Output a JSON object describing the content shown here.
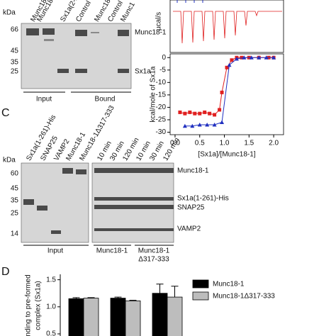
{
  "panel_a": {
    "kda": "kDa",
    "markers": [
      "66",
      "45",
      "35",
      "25"
    ],
    "lanes": [
      "Munc18",
      "Munc18",
      "Sx1a(2-2",
      "Control",
      "Munc18",
      "Control",
      "Munc1"
    ],
    "bands": [
      "Munc18-1",
      "Sx1a"
    ],
    "groups": [
      "Input",
      "Bound"
    ]
  },
  "panel_c": {
    "letter": "C",
    "kda": "kDa",
    "markers": [
      "60",
      "45",
      "35",
      "25",
      "14"
    ],
    "lanes": [
      "Sx1a(1-261)-His",
      "SNAP25",
      "VAMP2",
      "Munc18-1",
      "Munc18-1Δ317-333",
      "10 min",
      "30 min",
      "120 min",
      "10 min",
      "30 min",
      "120 min"
    ],
    "bands": [
      "Munc18-1",
      "Sx1a(1-261)-His",
      "SNAP25",
      "VAMP2"
    ],
    "groups": [
      "Input",
      "Munc18-1",
      "Munc18-1",
      "Δ317-333"
    ]
  },
  "itc_raw_label": "µcal/s",
  "panel_d": {
    "letter": "D"
  },
  "chart_data": [
    {
      "type": "scatter",
      "y_label": "kcal/mole of Sx1a",
      "x_label": "[Sx1a]/[Munc18-1]",
      "xlim": [
        -0.1,
        2.2
      ],
      "xticks": [
        {
          "value": 0,
          "label": "0.0"
        },
        0.5,
        {
          "value": 1,
          "label": "1.0"
        },
        1.5,
        {
          "value": 2,
          "label": "2.0"
        }
      ],
      "ylim": [
        -31,
        1.5
      ],
      "yticks": [
        0,
        -5,
        -10,
        -15,
        -20,
        -25,
        -30
      ],
      "series": [
        {
          "color": "#e02020",
          "marker": "square",
          "x": [
            0.1,
            0.2,
            0.3,
            0.4,
            0.5,
            0.6,
            0.7,
            0.8,
            0.9,
            0.95,
            1.05,
            1.15,
            1.25,
            1.35,
            1.5,
            1.7,
            1.9,
            2.0
          ],
          "values": [
            -22,
            -22.5,
            -22,
            -22.5,
            -22.5,
            -22,
            -22.5,
            -23,
            -21,
            -14,
            -4,
            -1,
            0,
            0,
            0,
            0,
            0,
            0
          ]
        },
        {
          "color": "#2030c0",
          "marker": "triangle",
          "x": [
            0.2,
            0.35,
            0.5,
            0.65,
            0.8,
            0.95,
            1.1,
            1.25,
            1.4,
            1.55,
            1.7,
            1.85,
            2.0
          ],
          "values": [
            -27.5,
            -27.5,
            -27,
            -27,
            -27,
            -26,
            -3,
            -0.5,
            0,
            0,
            0,
            0,
            0
          ]
        }
      ]
    },
    {
      "type": "bar",
      "y_label": [
        "nding to pre-formed",
        "complex (Sx1a)"
      ],
      "ylim": [
        0.5,
        1.6
      ],
      "yticks": [
        0.5,
        {
          "value": 1,
          "label": "1.0"
        },
        1.5
      ],
      "categories": [
        null,
        null,
        null
      ],
      "series": [
        {
          "name": "Munc18-1",
          "color": "#000000",
          "values": [
            1.15,
            1.16,
            1.25
          ],
          "errors": [
            0.02,
            0.02,
            0.17
          ]
        },
        {
          "name": "Munc18-1Δ317-333",
          "color": "#bdbdbd",
          "values": [
            1.16,
            1.11,
            1.18
          ],
          "errors": [
            0.01,
            0.01,
            0.2
          ]
        }
      ]
    }
  ]
}
